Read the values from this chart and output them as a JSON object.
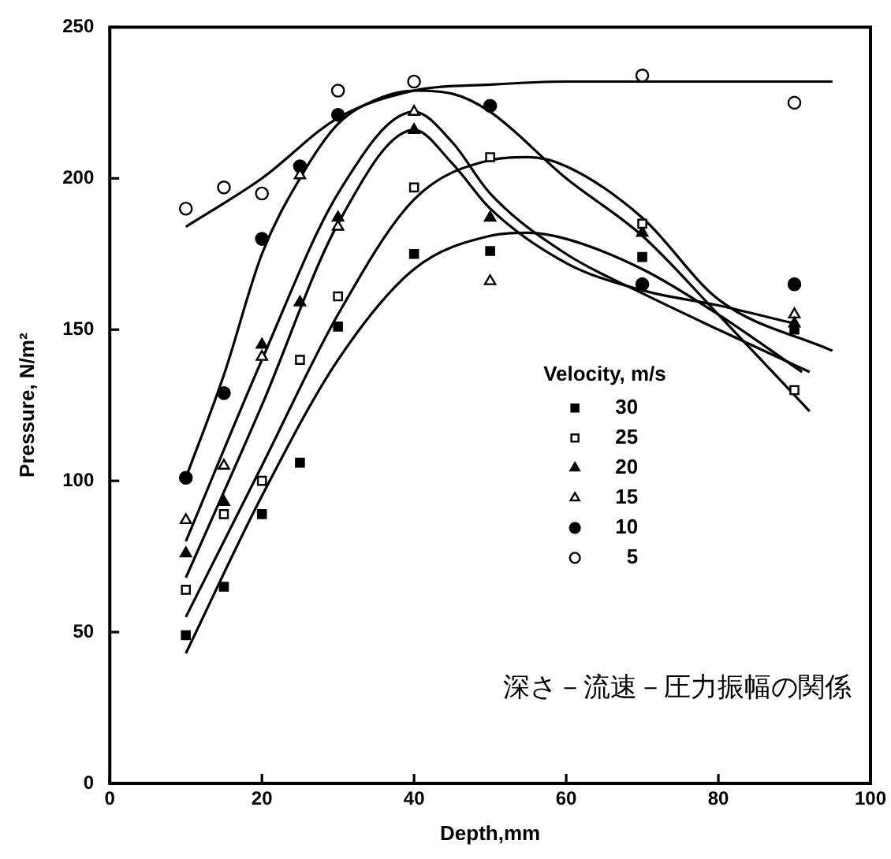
{
  "chart_data": {
    "type": "scatter",
    "xlabel": "Depth,mm",
    "ylabel": "Pressure, N/m²",
    "legend_title": "Velocity, m/s",
    "legend": "right",
    "grid": false,
    "xlim": [
      0,
      100
    ],
    "xticks": [
      0,
      20,
      40,
      60,
      80,
      100
    ],
    "ylim": [
      0,
      250
    ],
    "yticks": [
      0,
      50,
      100,
      150,
      200,
      250
    ],
    "annotations": [
      "深さ－流速－圧力振幅の関係"
    ],
    "series": [
      {
        "name": "30",
        "color": "#000000",
        "marker": "square",
        "x": [
          10,
          15,
          20,
          25,
          30,
          40,
          50,
          70,
          90
        ],
        "values": [
          49,
          65,
          89,
          106,
          151,
          175,
          176,
          174,
          150
        ]
      },
      {
        "name": "25",
        "color": "#ffffff",
        "marker": "square",
        "x": [
          10,
          15,
          20,
          25,
          30,
          40,
          50,
          70,
          90
        ],
        "values": [
          64,
          89,
          100,
          140,
          161,
          197,
          207,
          185,
          130
        ]
      },
      {
        "name": "20",
        "color": "#000000",
        "marker": "triangle",
        "x": [
          10,
          15,
          20,
          25,
          30,
          40,
          50,
          70,
          90
        ],
        "values": [
          76,
          93,
          145,
          159,
          187,
          216,
          187,
          182,
          152
        ]
      },
      {
        "name": "15",
        "color": "#ffffff",
        "marker": "triangle",
        "x": [
          10,
          15,
          20,
          25,
          30,
          40,
          50,
          90
        ],
        "values": [
          87,
          105,
          141,
          201,
          184,
          222,
          166,
          155
        ]
      },
      {
        "name": "10",
        "color": "#000000",
        "marker": "circle",
        "x": [
          10,
          15,
          20,
          25,
          30,
          50,
          70,
          90
        ],
        "values": [
          101,
          129,
          180,
          204,
          221,
          224,
          165,
          165
        ]
      },
      {
        "name": "5",
        "color": "#ffffff",
        "marker": "circle",
        "x": [
          10,
          15,
          20,
          30,
          40,
          70,
          90
        ],
        "values": [
          190,
          197,
          195,
          229,
          232,
          234,
          225
        ]
      },
      {
        "type": "line",
        "color": "#000000",
        "marker": "none",
        "x": [
          10,
          20,
          30,
          40,
          50,
          55,
          60,
          70,
          80,
          91
        ],
        "values": [
          43,
          95,
          140,
          170,
          181,
          182,
          180,
          170,
          155,
          136
        ]
      },
      {
        "type": "line",
        "color": "#000000",
        "marker": "none",
        "x": [
          10,
          20,
          30,
          40,
          50,
          55,
          60,
          70,
          80,
          95
        ],
        "values": [
          55,
          105,
          155,
          193,
          206,
          207,
          204,
          187,
          160,
          143
        ]
      },
      {
        "type": "line",
        "color": "#000000",
        "marker": "none",
        "x": [
          10,
          20,
          30,
          40,
          45,
          50,
          60,
          70,
          80,
          90
        ],
        "values": [
          68,
          125,
          185,
          216,
          205,
          190,
          172,
          163,
          158,
          152
        ]
      },
      {
        "type": "line",
        "color": "#000000",
        "marker": "none",
        "x": [
          10,
          20,
          30,
          40,
          45,
          50,
          60,
          70,
          80,
          92
        ],
        "values": [
          80,
          140,
          195,
          222,
          212,
          195,
          175,
          162,
          150,
          136
        ]
      },
      {
        "type": "line",
        "color": "#000000",
        "marker": "none",
        "x": [
          10,
          15,
          20,
          25,
          30,
          35,
          40,
          45,
          50,
          60,
          70,
          80,
          92
        ],
        "values": [
          101,
          135,
          175,
          200,
          218,
          226,
          229,
          228,
          222,
          200,
          181,
          155,
          123
        ]
      },
      {
        "type": "line",
        "color": "#000000",
        "marker": "none",
        "x": [
          10,
          20,
          30,
          40,
          50,
          60,
          80,
          95
        ],
        "values": [
          184,
          200,
          220,
          229,
          231,
          232,
          232,
          232
        ]
      }
    ]
  }
}
